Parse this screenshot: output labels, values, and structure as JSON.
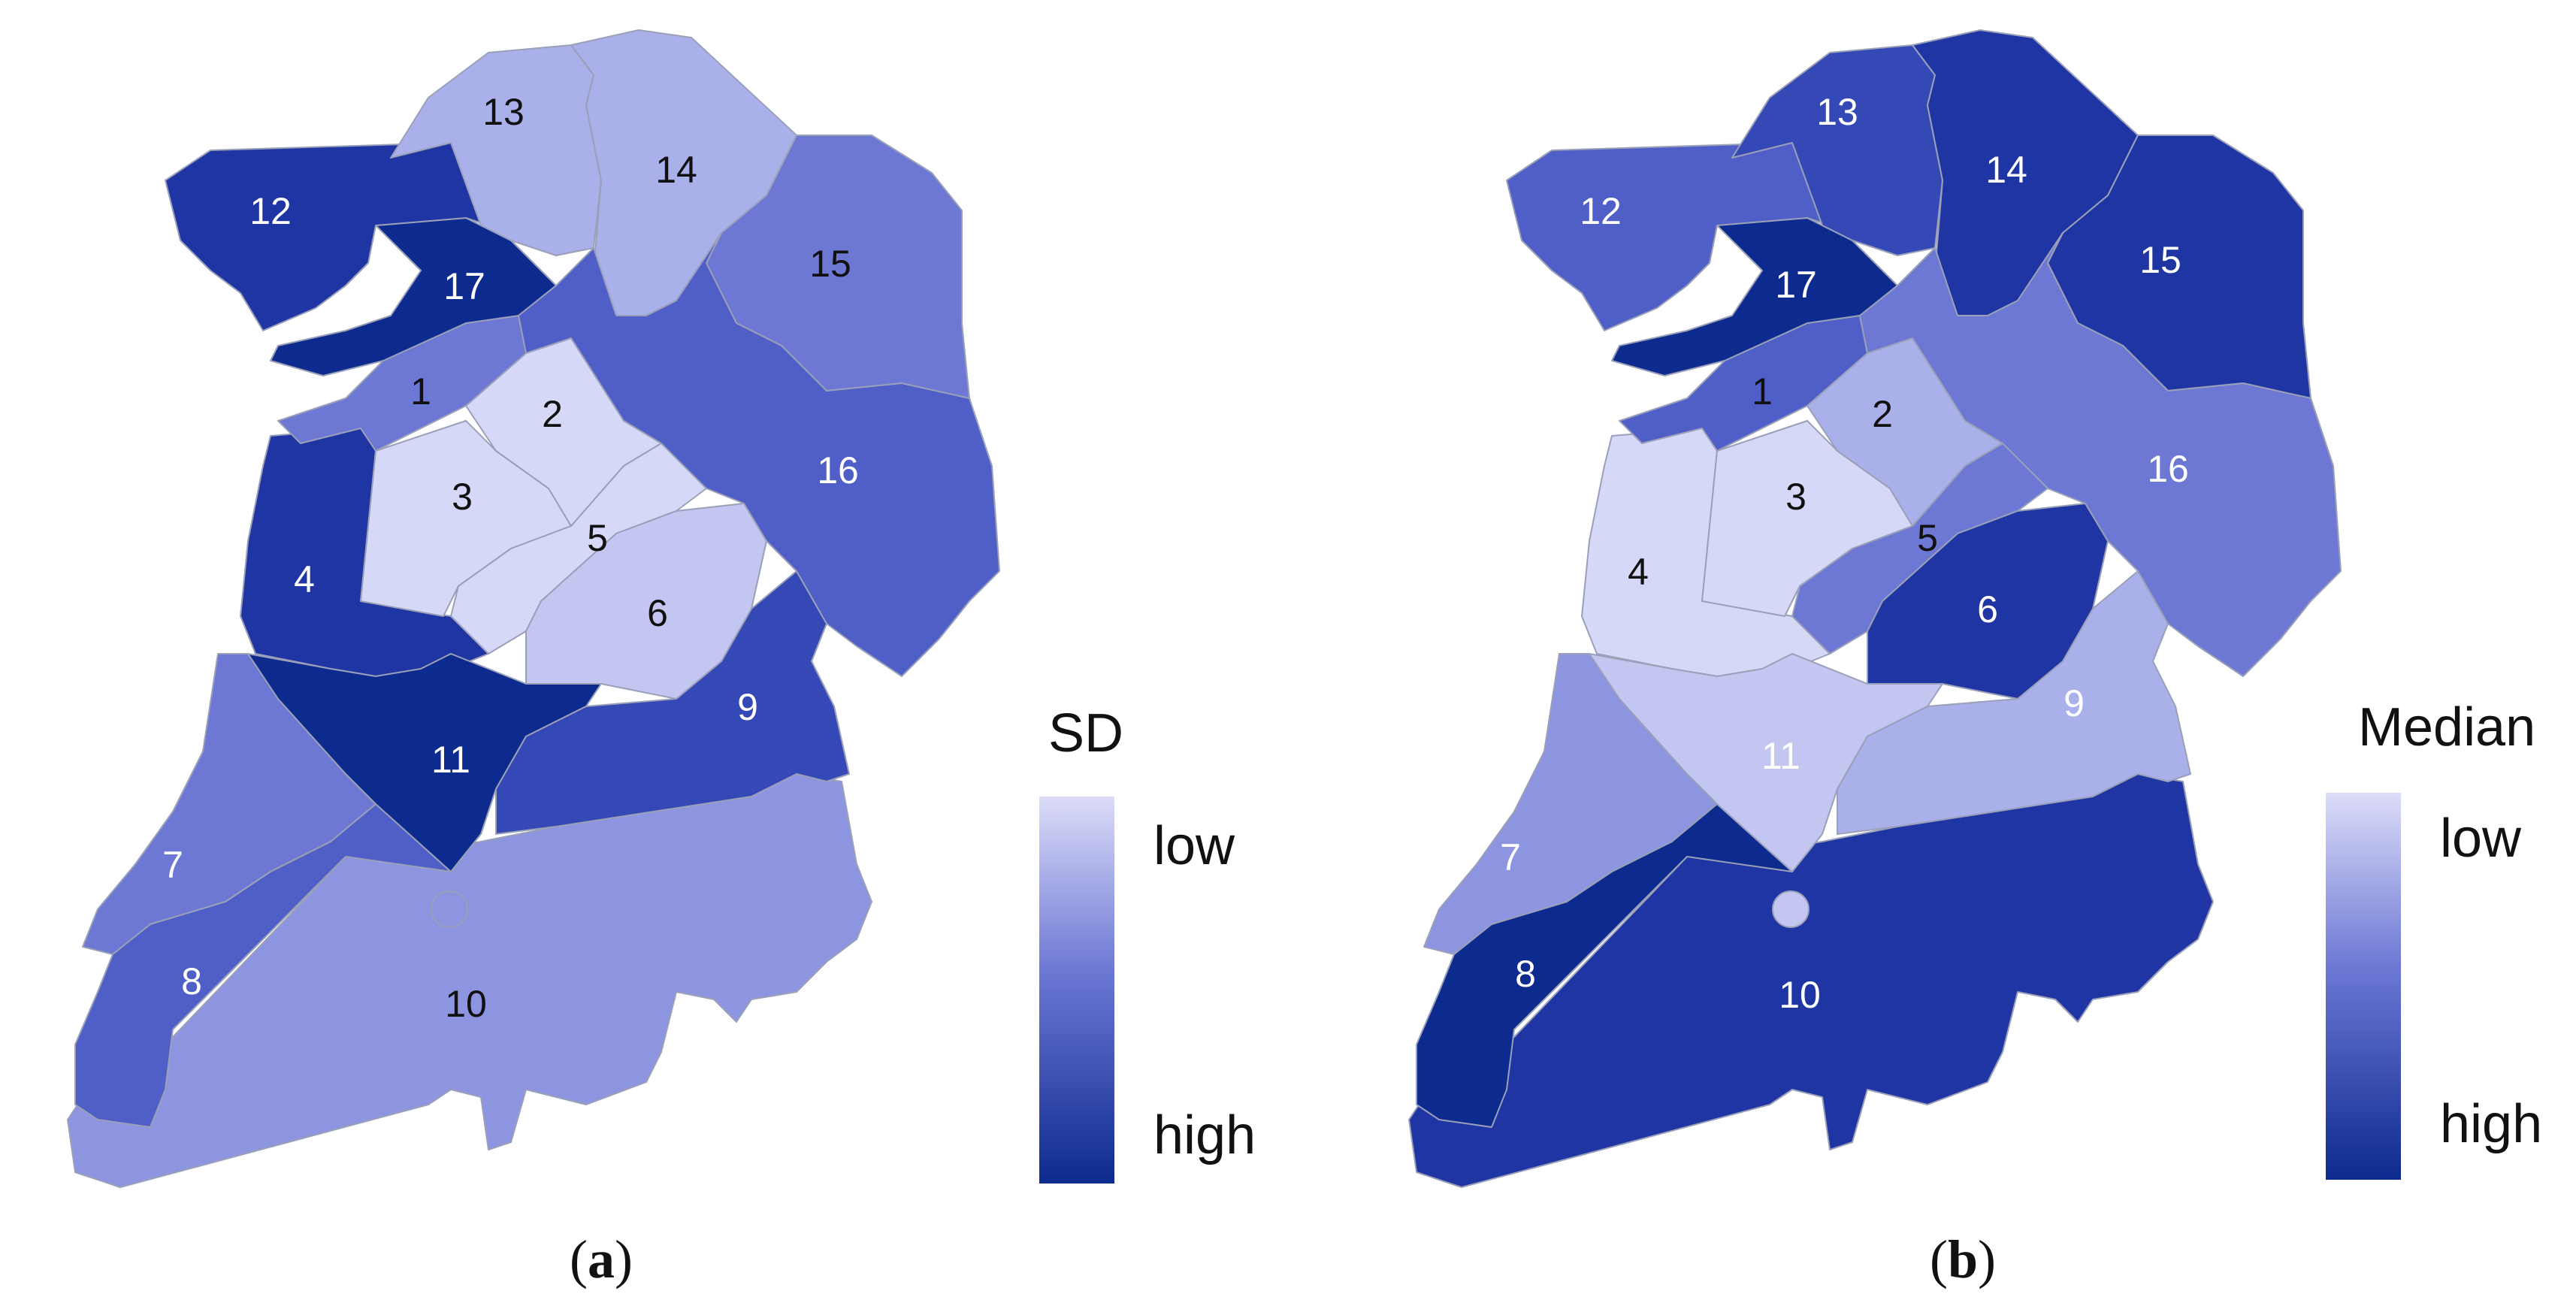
{
  "colors": {
    "c1": "#d6d8f7",
    "c2": "#c2c6f1",
    "c3": "#a9b0ea",
    "c4": "#8d95e0",
    "c5": "#6c78d4",
    "c6": "#4f5fc7",
    "c7": "#3448b6",
    "c8": "#1f35a3",
    "c9": "#0d2a8f"
  },
  "panels": [
    {
      "id": "a",
      "caption_open": "(",
      "caption_letter": "a",
      "caption_close": ")",
      "legend": {
        "title": "SD",
        "low": "low",
        "high": "high"
      },
      "districts": [
        {
          "id": "1",
          "label": "1",
          "level": "c5",
          "text": "#111111"
        },
        {
          "id": "2",
          "label": "2",
          "level": "c1",
          "text": "#111111"
        },
        {
          "id": "3",
          "label": "3",
          "level": "c1",
          "text": "#111111"
        },
        {
          "id": "4",
          "label": "4",
          "level": "c8",
          "text": "#ffffff"
        },
        {
          "id": "5",
          "label": "5",
          "level": "c1",
          "text": "#111111"
        },
        {
          "id": "6",
          "label": "6",
          "level": "c2",
          "text": "#111111"
        },
        {
          "id": "7",
          "label": "7",
          "level": "c5",
          "text": "#ffffff"
        },
        {
          "id": "8",
          "label": "8",
          "level": "c6",
          "text": "#ffffff"
        },
        {
          "id": "9",
          "label": "9",
          "level": "c7",
          "text": "#ffffff"
        },
        {
          "id": "10",
          "label": "10",
          "level": "c4",
          "text": "#111111"
        },
        {
          "id": "11",
          "label": "11",
          "level": "c9",
          "text": "#ffffff"
        },
        {
          "id": "12",
          "label": "12",
          "level": "c8",
          "text": "#ffffff"
        },
        {
          "id": "13",
          "label": "13",
          "level": "c3",
          "text": "#111111"
        },
        {
          "id": "14",
          "label": "14",
          "level": "c3",
          "text": "#111111"
        },
        {
          "id": "15",
          "label": "15",
          "level": "c5",
          "text": "#111111"
        },
        {
          "id": "16",
          "label": "16",
          "level": "c6",
          "text": "#ffffff"
        },
        {
          "id": "17",
          "label": "17",
          "level": "c9",
          "text": "#ffffff"
        }
      ]
    },
    {
      "id": "b",
      "caption_open": "(",
      "caption_letter": "b",
      "caption_close": ")",
      "legend": {
        "title": "Median",
        "low": "low",
        "high": "high"
      },
      "districts": [
        {
          "id": "1",
          "label": "1",
          "level": "c6",
          "text": "#111111"
        },
        {
          "id": "2",
          "label": "2",
          "level": "c3",
          "text": "#111111"
        },
        {
          "id": "3",
          "label": "3",
          "level": "c1",
          "text": "#111111"
        },
        {
          "id": "4",
          "label": "4",
          "level": "c1",
          "text": "#111111"
        },
        {
          "id": "5",
          "label": "5",
          "level": "c5",
          "text": "#111111"
        },
        {
          "id": "6",
          "label": "6",
          "level": "c8",
          "text": "#ffffff"
        },
        {
          "id": "7",
          "label": "7",
          "level": "c4",
          "text": "#ffffff"
        },
        {
          "id": "8",
          "label": "8",
          "level": "c9",
          "text": "#ffffff"
        },
        {
          "id": "9",
          "label": "9",
          "level": "c3",
          "text": "#ffffff"
        },
        {
          "id": "10",
          "label": "10",
          "level": "c8",
          "text": "#ffffff"
        },
        {
          "id": "11",
          "label": "11",
          "level": "c2",
          "text": "#ffffff"
        },
        {
          "id": "12",
          "label": "12",
          "level": "c6",
          "text": "#ffffff"
        },
        {
          "id": "13",
          "label": "13",
          "level": "c7",
          "text": "#ffffff"
        },
        {
          "id": "14",
          "label": "14",
          "level": "c8",
          "text": "#ffffff"
        },
        {
          "id": "15",
          "label": "15",
          "level": "c8",
          "text": "#ffffff"
        },
        {
          "id": "16",
          "label": "16",
          "level": "c5",
          "text": "#ffffff"
        },
        {
          "id": "17",
          "label": "17",
          "level": "c9",
          "text": "#ffffff"
        }
      ]
    }
  ]
}
